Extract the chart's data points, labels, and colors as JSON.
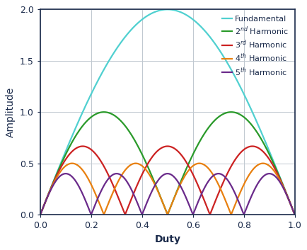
{
  "xlabel": "Duty",
  "ylabel": "Amplitude",
  "xlim": [
    0,
    1.0
  ],
  "ylim": [
    0,
    2.0
  ],
  "xticks": [
    0,
    0.2,
    0.4,
    0.6,
    0.8,
    1.0
  ],
  "yticks": [
    0,
    0.5,
    1.0,
    1.5,
    2.0
  ],
  "grid_color": "#c0c8d0",
  "background_color": "#ffffff",
  "spine_color": "#1a2a4a",
  "label_color": "#1a2a4a",
  "tick_color": "#1a2a4a",
  "series": [
    {
      "n": 1,
      "color": "#50d0d0",
      "lw": 1.6
    },
    {
      "n": 2,
      "color": "#2a9a2a",
      "lw": 1.6
    },
    {
      "n": 3,
      "color": "#cc2222",
      "lw": 1.6
    },
    {
      "n": 4,
      "color": "#e88010",
      "lw": 1.6
    },
    {
      "n": 5,
      "color": "#6a2a8a",
      "lw": 1.6
    }
  ],
  "legend_labels": [
    "Fundamental",
    "2$^{nd}$ Harmonic",
    "3$^{rd}$ Harmonic",
    "4$^{th}$ Harmonic",
    "5$^{th}$ Harmonic"
  ],
  "legend_colors": [
    "#50d0d0",
    "#2a9a2a",
    "#cc2222",
    "#e88010",
    "#6a2a8a"
  ],
  "xlabel_fontsize": 10,
  "ylabel_fontsize": 10,
  "tick_fontsize": 9,
  "legend_fontsize": 8,
  "figsize": [
    4.35,
    3.53
  ],
  "dpi": 100
}
